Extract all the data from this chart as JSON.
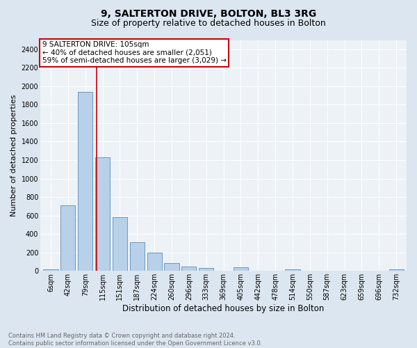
{
  "title1": "9, SALTERTON DRIVE, BOLTON, BL3 3RG",
  "title2": "Size of property relative to detached houses in Bolton",
  "xlabel": "Distribution of detached houses by size in Bolton",
  "ylabel": "Number of detached properties",
  "bar_labels": [
    "6sqm",
    "42sqm",
    "79sqm",
    "115sqm",
    "151sqm",
    "187sqm",
    "224sqm",
    "260sqm",
    "296sqm",
    "333sqm",
    "369sqm",
    "405sqm",
    "442sqm",
    "478sqm",
    "514sqm",
    "550sqm",
    "587sqm",
    "623sqm",
    "659sqm",
    "696sqm",
    "732sqm"
  ],
  "bar_values": [
    15,
    710,
    1940,
    1230,
    580,
    310,
    200,
    85,
    50,
    35,
    5,
    40,
    5,
    5,
    20,
    5,
    5,
    5,
    5,
    5,
    15
  ],
  "bar_color": "#b8d0e8",
  "bar_edge_color": "#6899c4",
  "ylim": [
    0,
    2500
  ],
  "yticks": [
    0,
    200,
    400,
    600,
    800,
    1000,
    1200,
    1400,
    1600,
    1800,
    2000,
    2200,
    2400
  ],
  "vline_x": 2.67,
  "vline_color": "#cc0000",
  "annotation_text": "9 SALTERTON DRIVE: 105sqm\n← 40% of detached houses are smaller (2,051)\n59% of semi-detached houses are larger (3,029) →",
  "annotation_box_color": "#ffffff",
  "annotation_box_edge": "#cc0000",
  "footer": "Contains HM Land Registry data © Crown copyright and database right 2024.\nContains public sector information licensed under the Open Government Licence v3.0.",
  "bg_color": "#dce6f0",
  "plot_bg_color": "#edf2f7",
  "title1_fontsize": 10,
  "title2_fontsize": 9,
  "xlabel_fontsize": 8.5,
  "ylabel_fontsize": 8,
  "tick_fontsize": 7,
  "footer_fontsize": 6,
  "annot_fontsize": 7.5
}
